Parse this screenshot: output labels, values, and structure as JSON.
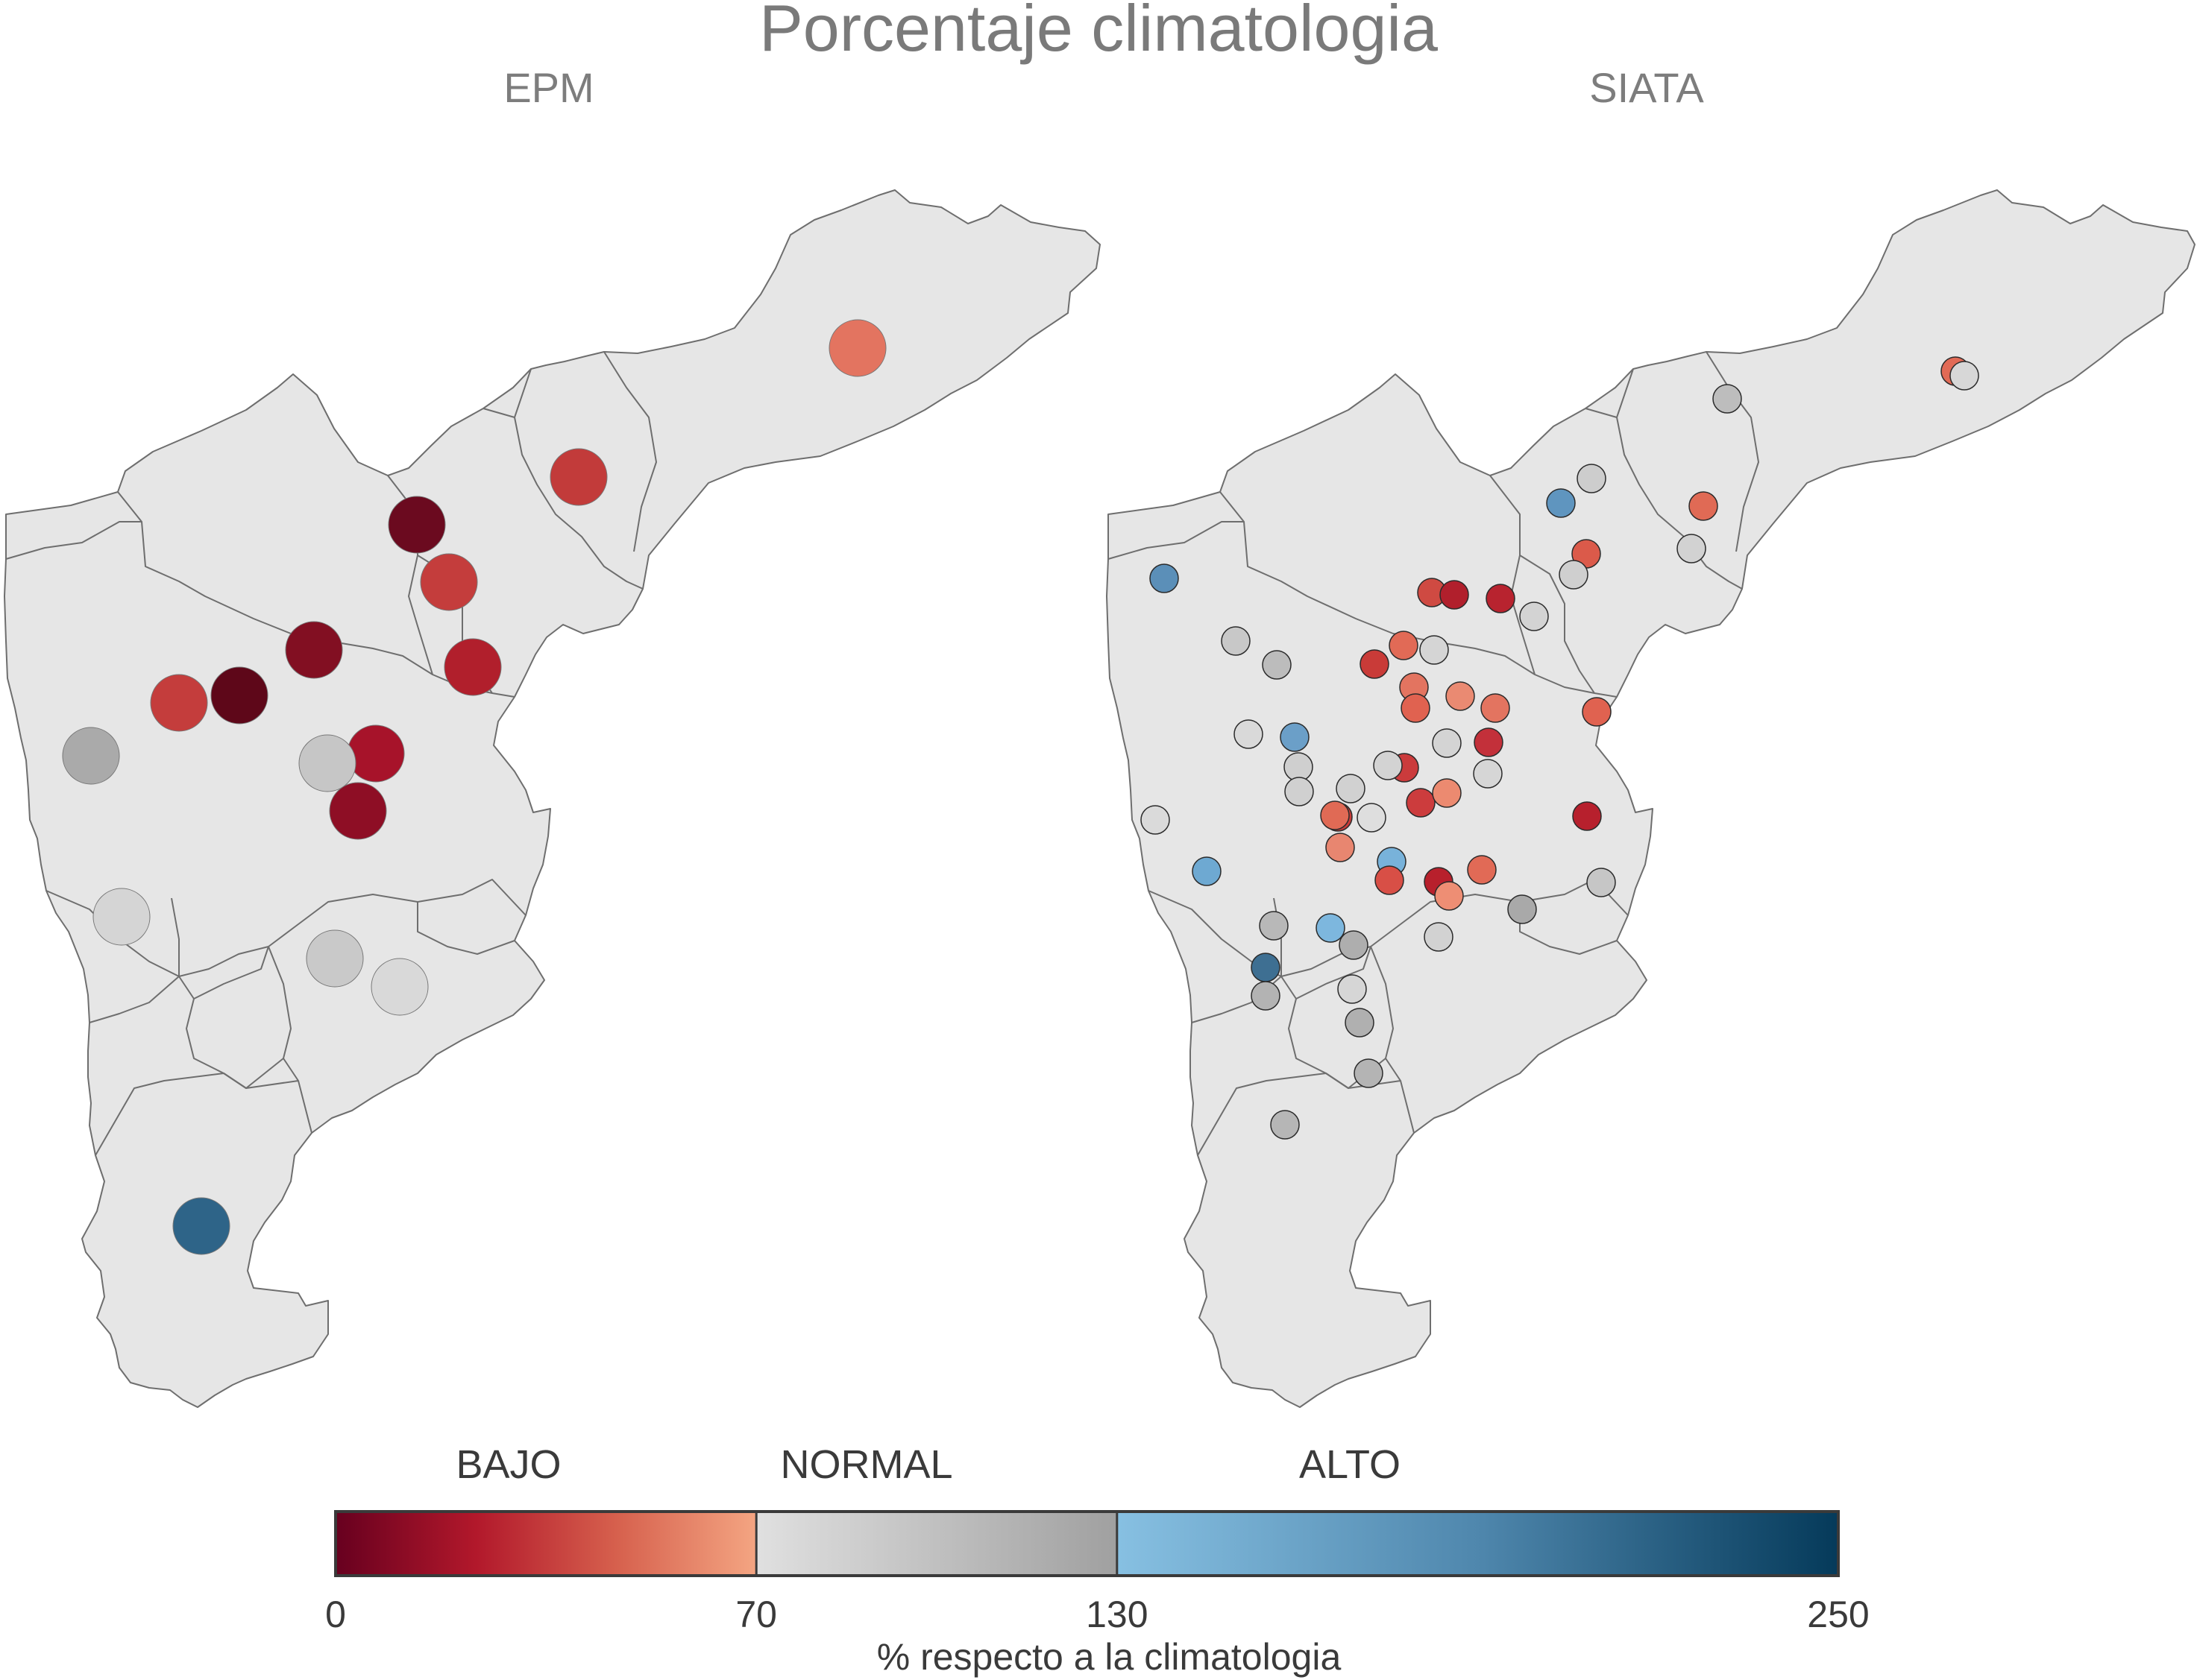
{
  "title": "Porcentaje climatologia",
  "panels": [
    {
      "key": "epm",
      "subtitle": "EPM",
      "stations": [
        {
          "category": "BAJO",
          "color": "#e37460"
        },
        {
          "category": "BAJO",
          "color": "#c23b3a"
        },
        {
          "category": "BAJO",
          "color": "#6b0a1f"
        },
        {
          "category": "BAJO",
          "color": "#c43d3c"
        },
        {
          "category": "BAJO",
          "color": "#820f22"
        },
        {
          "category": "BAJO",
          "color": "#b11f2c"
        },
        {
          "category": "BAJO",
          "color": "#c43d3c"
        },
        {
          "category": "BAJO",
          "color": "#5e0719"
        },
        {
          "category": "NORMAL",
          "color": "#aaaaaa"
        },
        {
          "category": "BAJO",
          "color": "#a7132a"
        },
        {
          "category": "NORMAL",
          "color": "#c6c6c6"
        },
        {
          "category": "BAJO",
          "color": "#8e0e25"
        },
        {
          "category": "NORMAL",
          "color": "#d5d5d5"
        },
        {
          "category": "NORMAL",
          "color": "#c9c9c9"
        },
        {
          "category": "NORMAL",
          "color": "#d9d9d9"
        },
        {
          "category": "ALTO",
          "color": "#2e6488"
        }
      ]
    },
    {
      "key": "siata",
      "subtitle": "SIATA",
      "stations": [
        {
          "category": "BAJO",
          "color": "#e16a56"
        },
        {
          "category": "NORMAL",
          "color": "#d7d7d7"
        },
        {
          "category": "NORMAL",
          "color": "#bdbdbd"
        },
        {
          "category": "NORMAL",
          "color": "#cdcdcd"
        },
        {
          "category": "ALTO",
          "color": "#5f95bf"
        },
        {
          "category": "BAJO",
          "color": "#e06a55"
        },
        {
          "category": "NORMAL",
          "color": "#d2d2d2"
        },
        {
          "category": "BAJO",
          "color": "#db5a4a"
        },
        {
          "category": "NORMAL",
          "color": "#cfcfcf"
        },
        {
          "category": "ALTO",
          "color": "#5b8fb8"
        },
        {
          "category": "BAJO",
          "color": "#cf4a42"
        },
        {
          "category": "BAJO",
          "color": "#b11f2c"
        },
        {
          "category": "BAJO",
          "color": "#b8232f"
        },
        {
          "category": "NORMAL",
          "color": "#d3d3d3"
        },
        {
          "category": "NORMAL",
          "color": "#c8c8c8"
        },
        {
          "category": "NORMAL",
          "color": "#bcbcbc"
        },
        {
          "category": "BAJO",
          "color": "#c93b38"
        },
        {
          "category": "BAJO",
          "color": "#e16a56"
        },
        {
          "category": "NORMAL",
          "color": "#d5d5d5"
        },
        {
          "category": "BAJO",
          "color": "#e37460"
        },
        {
          "category": "BAJO",
          "color": "#ea8a72"
        },
        {
          "category": "BAJO",
          "color": "#e06250"
        },
        {
          "category": "BAJO",
          "color": "#e37460"
        },
        {
          "category": "BAJO",
          "color": "#e06250"
        },
        {
          "category": "NORMAL",
          "color": "#d9d9d9"
        },
        {
          "category": "ALTO",
          "color": "#6b9fc8"
        },
        {
          "category": "NORMAL",
          "color": "#d4d4d4"
        },
        {
          "category": "BAJO",
          "color": "#c3303a"
        },
        {
          "category": "NORMAL",
          "color": "#cfcfcf"
        },
        {
          "category": "BAJO",
          "color": "#cb3b3c"
        },
        {
          "category": "NORMAL",
          "color": "#d3d3d3"
        },
        {
          "category": "NORMAL",
          "color": "#d6d6d6"
        },
        {
          "category": "NORMAL",
          "color": "#d0d0d0"
        },
        {
          "category": "NORMAL",
          "color": "#d1d1d1"
        },
        {
          "category": "BAJO",
          "color": "#c93b38"
        },
        {
          "category": "NORMAL",
          "color": "#dedede"
        },
        {
          "category": "BAJO",
          "color": "#cc3c3d"
        },
        {
          "category": "BAJO",
          "color": "#ec8a70"
        },
        {
          "category": "NORMAL",
          "color": "#dadada"
        },
        {
          "category": "BAJO",
          "color": "#e06a55"
        },
        {
          "category": "BAJO",
          "color": "#b7202d"
        },
        {
          "category": "ALTO",
          "color": "#6ea9d2"
        },
        {
          "category": "BAJO",
          "color": "#e88670"
        },
        {
          "category": "ALTO",
          "color": "#78b2da"
        },
        {
          "category": "BAJO",
          "color": "#b8202c"
        },
        {
          "category": "BAJO",
          "color": "#d84f46"
        },
        {
          "category": "BAJO",
          "color": "#e16a56"
        },
        {
          "category": "NORMAL",
          "color": "#c6c6c6"
        },
        {
          "category": "BAJO",
          "color": "#ee8e74"
        },
        {
          "category": "NORMAL",
          "color": "#a9a9a9"
        },
        {
          "category": "NORMAL",
          "color": "#b8b8b8"
        },
        {
          "category": "ALTO",
          "color": "#7db7de"
        },
        {
          "category": "NORMAL",
          "color": "#aeaeae"
        },
        {
          "category": "NORMAL",
          "color": "#d2d2d2"
        },
        {
          "category": "ALTO",
          "color": "#3e6f92"
        },
        {
          "category": "NORMAL",
          "color": "#b3b3b3"
        },
        {
          "category": "NORMAL",
          "color": "#d6d6d6"
        },
        {
          "category": "NORMAL",
          "color": "#b0b0b0"
        },
        {
          "category": "NORMAL",
          "color": "#b4b4b4"
        },
        {
          "category": "NORMAL",
          "color": "#b6b6b6"
        }
      ]
    }
  ],
  "legend": {
    "categories": [
      "BAJO",
      "NORMAL",
      "ALTO"
    ],
    "tick_labels": [
      "0",
      "70",
      "130",
      "250"
    ],
    "tick_values": [
      0,
      70,
      130,
      250
    ],
    "axis_label": "% respecto a la climatologia",
    "range": [
      0,
      250
    ],
    "bands": [
      {
        "category": "BAJO",
        "from": 0,
        "to": 70,
        "colors": [
          "#67001f",
          "#b2182b",
          "#d6604d",
          "#f4a582"
        ]
      },
      {
        "category": "NORMAL",
        "from": 70,
        "to": 130,
        "colors": [
          "#e0e0e0",
          "#a0a0a0"
        ]
      },
      {
        "category": "ALTO",
        "from": 130,
        "to": 250,
        "colors": [
          "#87c0e2",
          "#4f87ad",
          "#053a5a"
        ]
      }
    ]
  },
  "colors": {
    "region_fill": "#e6e6e6",
    "region_stroke": "#6e6e6e",
    "title_text": "#7a7a7a"
  }
}
